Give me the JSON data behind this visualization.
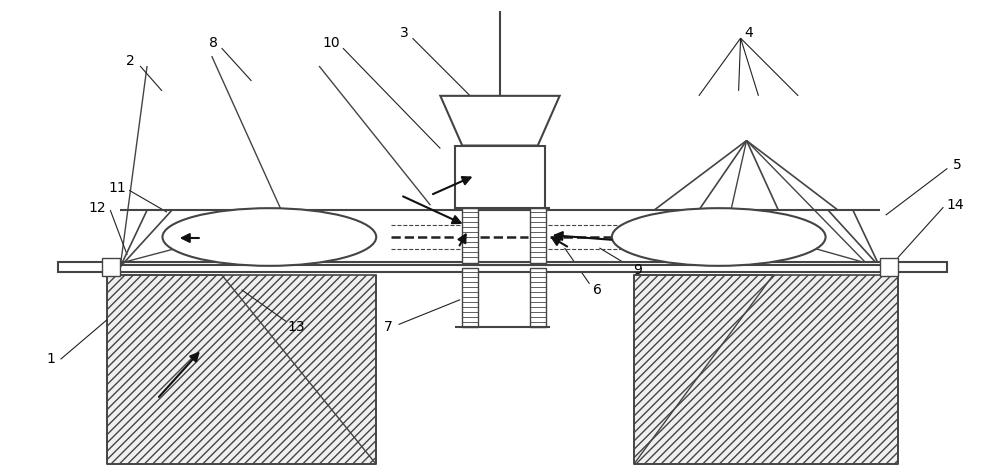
{
  "bg_color": "#ffffff",
  "lc": "#444444",
  "lc2": "#222222",
  "figsize": [
    10.0,
    4.76
  ],
  "dpi": 100,
  "ground_hatch": "////",
  "label_fs": 10
}
